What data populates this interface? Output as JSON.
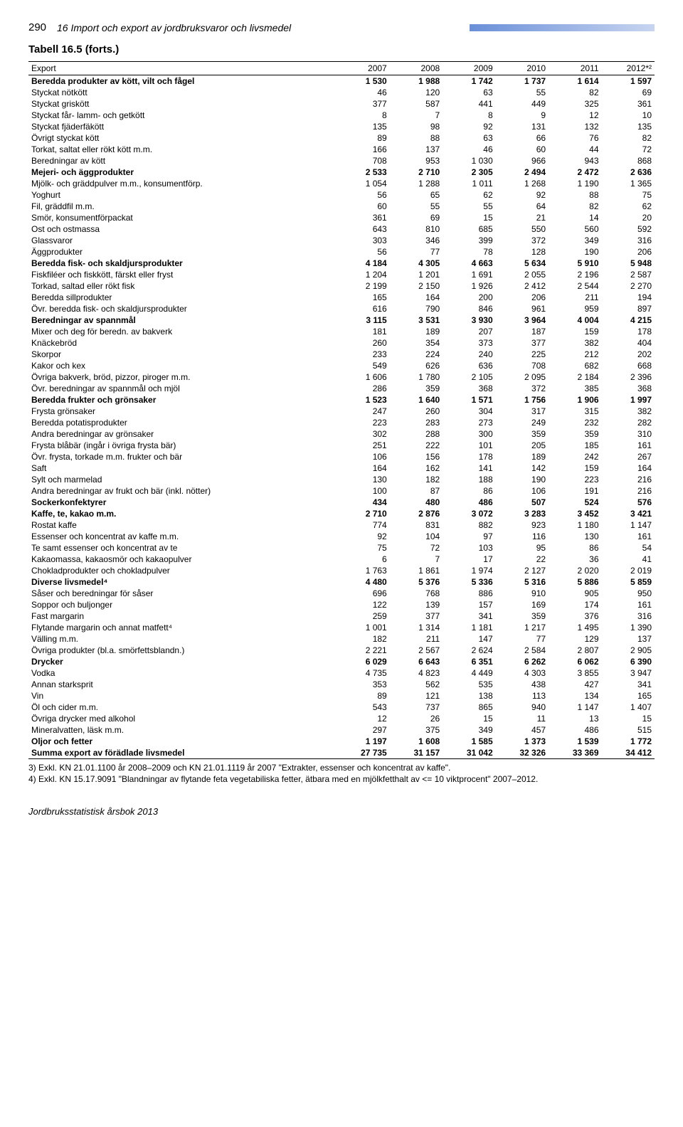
{
  "header": {
    "page_number": "290",
    "chapter": "16   Import och export av jordbruksvaror och livsmedel"
  },
  "table": {
    "title": "Tabell 16.5 (forts.)",
    "section_label": "Export",
    "columns": [
      "2007",
      "2008",
      "2009",
      "2010",
      "2011",
      "2012*²"
    ],
    "rows": [
      {
        "label": "Beredda produkter av kött, vilt och fågel",
        "v": [
          "1 530",
          "1 988",
          "1 742",
          "1 737",
          "1 614",
          "1 597"
        ],
        "bold": true
      },
      {
        "label": "Styckat nötkött",
        "v": [
          "46",
          "120",
          "63",
          "55",
          "82",
          "69"
        ]
      },
      {
        "label": "Styckat griskött",
        "v": [
          "377",
          "587",
          "441",
          "449",
          "325",
          "361"
        ]
      },
      {
        "label": "Styckat får- lamm- och getkött",
        "v": [
          "8",
          "7",
          "8",
          "9",
          "12",
          "10"
        ]
      },
      {
        "label": "Styckat fjäderfäkött",
        "v": [
          "135",
          "98",
          "92",
          "131",
          "132",
          "135"
        ]
      },
      {
        "label": "Övrigt styckat kött",
        "v": [
          "89",
          "88",
          "63",
          "66",
          "76",
          "82"
        ]
      },
      {
        "label": "Torkat, saltat eller rökt kött m.m.",
        "v": [
          "166",
          "137",
          "46",
          "60",
          "44",
          "72"
        ]
      },
      {
        "label": "Beredningar av kött",
        "v": [
          "708",
          "953",
          "1 030",
          "966",
          "943",
          "868"
        ]
      },
      {
        "label": "Mejeri- och äggprodukter",
        "v": [
          "2 533",
          "2 710",
          "2 305",
          "2 494",
          "2 472",
          "2 636"
        ],
        "bold": true
      },
      {
        "label": "Mjölk- och gräddpulver m.m., konsumentförp.",
        "v": [
          "1 054",
          "1 288",
          "1 011",
          "1 268",
          "1 190",
          "1 365"
        ]
      },
      {
        "label": "Yoghurt",
        "v": [
          "56",
          "65",
          "62",
          "92",
          "88",
          "75"
        ]
      },
      {
        "label": "Fil, gräddfil m.m.",
        "v": [
          "60",
          "55",
          "55",
          "64",
          "82",
          "62"
        ]
      },
      {
        "label": "Smör, konsumentförpackat",
        "v": [
          "361",
          "69",
          "15",
          "21",
          "14",
          "20"
        ]
      },
      {
        "label": "Ost och ostmassa",
        "v": [
          "643",
          "810",
          "685",
          "550",
          "560",
          "592"
        ]
      },
      {
        "label": "Glassvaror",
        "v": [
          "303",
          "346",
          "399",
          "372",
          "349",
          "316"
        ]
      },
      {
        "label": "Äggprodukter",
        "v": [
          "56",
          "77",
          "78",
          "128",
          "190",
          "206"
        ]
      },
      {
        "label": "Beredda fisk- och skaldjursprodukter",
        "v": [
          "4 184",
          "4 305",
          "4 663",
          "5 634",
          "5 910",
          "5 948"
        ],
        "bold": true
      },
      {
        "label": "Fiskfiléer och fiskkött, färskt eller fryst",
        "v": [
          "1 204",
          "1 201",
          "1 691",
          "2 055",
          "2 196",
          "2 587"
        ]
      },
      {
        "label": "Torkad, saltad eller rökt fisk",
        "v": [
          "2 199",
          "2 150",
          "1 926",
          "2 412",
          "2 544",
          "2 270"
        ]
      },
      {
        "label": "Beredda sillprodukter",
        "v": [
          "165",
          "164",
          "200",
          "206",
          "211",
          "194"
        ]
      },
      {
        "label": "Övr. beredda fisk- och skaldjursprodukter",
        "v": [
          "616",
          "790",
          "846",
          "961",
          "959",
          "897"
        ]
      },
      {
        "label": "Beredningar av spannmål",
        "v": [
          "3 115",
          "3 531",
          "3 930",
          "3 964",
          "4 004",
          "4 215"
        ],
        "bold": true
      },
      {
        "label": "Mixer och deg för beredn. av bakverk",
        "v": [
          "181",
          "189",
          "207",
          "187",
          "159",
          "178"
        ]
      },
      {
        "label": "Knäckebröd",
        "v": [
          "260",
          "354",
          "373",
          "377",
          "382",
          "404"
        ]
      },
      {
        "label": "Skorpor",
        "v": [
          "233",
          "224",
          "240",
          "225",
          "212",
          "202"
        ]
      },
      {
        "label": "Kakor och kex",
        "v": [
          "549",
          "626",
          "636",
          "708",
          "682",
          "668"
        ]
      },
      {
        "label": "Övriga bakverk, bröd, pizzor, piroger m.m.",
        "v": [
          "1 606",
          "1 780",
          "2 105",
          "2 095",
          "2 184",
          "2 396"
        ]
      },
      {
        "label": "Övr. beredningar av spannmål och mjöl",
        "v": [
          "286",
          "359",
          "368",
          "372",
          "385",
          "368"
        ]
      },
      {
        "label": "Beredda frukter och grönsaker",
        "v": [
          "1 523",
          "1 640",
          "1 571",
          "1 756",
          "1 906",
          "1 997"
        ],
        "bold": true
      },
      {
        "label": "Frysta grönsaker",
        "v": [
          "247",
          "260",
          "304",
          "317",
          "315",
          "382"
        ]
      },
      {
        "label": "Beredda potatisprodukter",
        "v": [
          "223",
          "283",
          "273",
          "249",
          "232",
          "282"
        ]
      },
      {
        "label": "Andra beredningar av grönsaker",
        "v": [
          "302",
          "288",
          "300",
          "359",
          "359",
          "310"
        ]
      },
      {
        "label": "Frysta blåbär (ingår i övriga frysta bär)",
        "v": [
          "251",
          "222",
          "101",
          "205",
          "185",
          "161"
        ]
      },
      {
        "label": "Övr. frysta, torkade m.m. frukter och bär",
        "v": [
          "106",
          "156",
          "178",
          "189",
          "242",
          "267"
        ]
      },
      {
        "label": "Saft",
        "v": [
          "164",
          "162",
          "141",
          "142",
          "159",
          "164"
        ]
      },
      {
        "label": "Sylt och marmelad",
        "v": [
          "130",
          "182",
          "188",
          "190",
          "223",
          "216"
        ]
      },
      {
        "label": "Andra beredningar av frukt och bär (inkl. nötter)",
        "v": [
          "100",
          "87",
          "86",
          "106",
          "191",
          "216"
        ]
      },
      {
        "label": "Sockerkonfektyrer",
        "v": [
          "434",
          "480",
          "486",
          "507",
          "524",
          "576"
        ],
        "bold": true
      },
      {
        "label": "Kaffe, te, kakao m.m.",
        "v": [
          "2 710",
          "2 876",
          "3 072",
          "3 283",
          "3 452",
          "3 421"
        ],
        "bold": true
      },
      {
        "label": "Rostat kaffe",
        "v": [
          "774",
          "831",
          "882",
          "923",
          "1 180",
          "1 147"
        ]
      },
      {
        "label": "Essenser och koncentrat av kaffe m.m.",
        "v": [
          "92",
          "104",
          "97",
          "116",
          "130",
          "161"
        ]
      },
      {
        "label": "Te samt essenser och koncentrat av te",
        "v": [
          "75",
          "72",
          "103",
          "95",
          "86",
          "54"
        ]
      },
      {
        "label": "Kakaomassa, kakaosmör och kakaopulver",
        "v": [
          "6",
          "7",
          "17",
          "22",
          "36",
          "41"
        ]
      },
      {
        "label": "Chokladprodukter och chokladpulver",
        "v": [
          "1 763",
          "1 861",
          "1 974",
          "2 127",
          "2 020",
          "2 019"
        ]
      },
      {
        "label": "Diverse livsmedel⁴",
        "v": [
          "4 480",
          "5 376",
          "5 336",
          "5 316",
          "5 886",
          "5 859"
        ],
        "bold": true
      },
      {
        "label": "Såser och beredningar för såser",
        "v": [
          "696",
          "768",
          "886",
          "910",
          "905",
          "950"
        ]
      },
      {
        "label": "Soppor och buljonger",
        "v": [
          "122",
          "139",
          "157",
          "169",
          "174",
          "161"
        ]
      },
      {
        "label": "Fast margarin",
        "v": [
          "259",
          "377",
          "341",
          "359",
          "376",
          "316"
        ]
      },
      {
        "label": "Flytande margarin och annat matfett⁴",
        "v": [
          "1 001",
          "1 314",
          "1 181",
          "1 217",
          "1 495",
          "1 390"
        ]
      },
      {
        "label": "Välling m.m.",
        "v": [
          "182",
          "211",
          "147",
          "77",
          "129",
          "137"
        ]
      },
      {
        "label": "Övriga produkter (bl.a. smörfettsblandn.)",
        "v": [
          "2 221",
          "2 567",
          "2 624",
          "2 584",
          "2 807",
          "2 905"
        ]
      },
      {
        "label": "Drycker",
        "v": [
          "6 029",
          "6 643",
          "6 351",
          "6 262",
          "6 062",
          "6 390"
        ],
        "bold": true
      },
      {
        "label": "Vodka",
        "v": [
          "4 735",
          "4 823",
          "4 449",
          "4 303",
          "3 855",
          "3 947"
        ]
      },
      {
        "label": "Annan starksprit",
        "v": [
          "353",
          "562",
          "535",
          "438",
          "427",
          "341"
        ]
      },
      {
        "label": "Vin",
        "v": [
          "89",
          "121",
          "138",
          "113",
          "134",
          "165"
        ]
      },
      {
        "label": "Öl och cider m.m.",
        "v": [
          "543",
          "737",
          "865",
          "940",
          "1 147",
          "1 407"
        ]
      },
      {
        "label": "Övriga drycker med alkohol",
        "v": [
          "12",
          "26",
          "15",
          "11",
          "13",
          "15"
        ]
      },
      {
        "label": "Mineralvatten, läsk m.m.",
        "v": [
          "297",
          "375",
          "349",
          "457",
          "486",
          "515"
        ]
      },
      {
        "label": "Oljor och fetter",
        "v": [
          "1 197",
          "1 608",
          "1 585",
          "1 373",
          "1 539",
          "1 772"
        ],
        "bold": true
      },
      {
        "label": "Summa export av förädlade livsmedel",
        "v": [
          "27 735",
          "31 157",
          "31 042",
          "32 326",
          "33 369",
          "34 412"
        ],
        "bold": true
      }
    ]
  },
  "footnotes": [
    "3) Exkl. KN 21.01.1100 år 2008–2009 och KN 21.01.1119 år 2007 \"Extrakter, essenser och koncentrat av kaffe\".",
    "4) Exkl. KN 15.17.9091 \"Blandningar av flytande feta vegetabiliska fetter, ätbara med en mjölkfetthalt av <= 10 viktprocent\" 2007–2012."
  ],
  "book_title": "Jordbruksstatistisk årsbok 2013"
}
